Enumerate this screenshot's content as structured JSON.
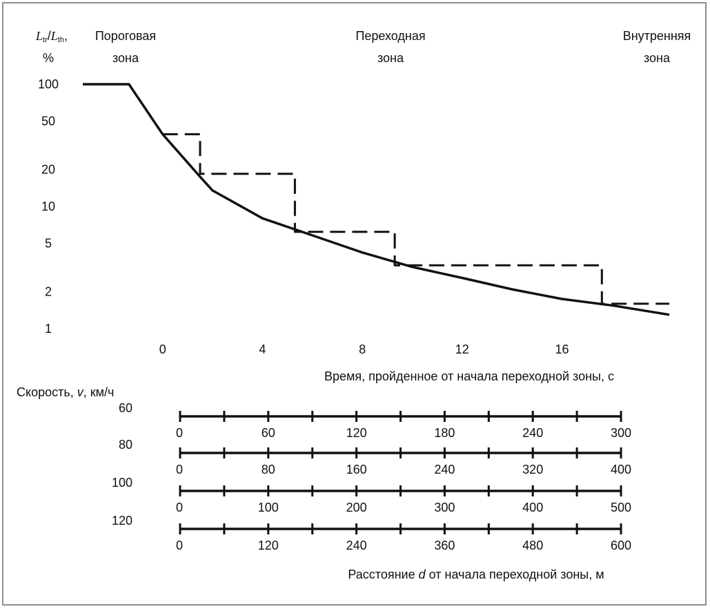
{
  "chart_data": {
    "type": "line",
    "ylabel_main": "L",
    "ylabel_main_sub": "tr",
    "ylabel_sep": "/",
    "ylabel_ref": "L",
    "ylabel_ref_sub": "th",
    "ylabel_tail": ",",
    "ylabel_unit": "%",
    "yscale": "log",
    "ylim": [
      1,
      100
    ],
    "yticks": [
      "100",
      "50",
      "20",
      "10",
      "5",
      "2",
      "1"
    ],
    "ytick_values": [
      100,
      50,
      20,
      10,
      5,
      2,
      1
    ],
    "xlabel": "Время, пройденное от начала переходной зоны, с",
    "xlim": [
      -3.2,
      20.3
    ],
    "xticks": [
      "0",
      "4",
      "8",
      "12",
      "16"
    ],
    "xtick_values": [
      0,
      4,
      8,
      12,
      16
    ],
    "zones": [
      {
        "line1": "Пороговая",
        "line2": "зона"
      },
      {
        "line1": "Переходная",
        "line2": "зона"
      },
      {
        "line1": "Внутренняя",
        "line2": "зона"
      }
    ],
    "series": [
      {
        "style": "solid",
        "x": [
          -3.2,
          -1.35,
          0,
          1.5,
          2.0,
          4.0,
          6.0,
          8.0,
          10.0,
          12.0,
          14.0,
          16.0,
          18.0,
          20.3
        ],
        "y": [
          100,
          100,
          39,
          17.5,
          13.5,
          8.0,
          5.8,
          4.2,
          3.2,
          2.6,
          2.1,
          1.75,
          1.55,
          1.3
        ]
      },
      {
        "style": "dashed",
        "x": [
          0,
          1.5,
          1.5,
          5.3,
          5.3,
          9.3,
          9.3,
          17.6,
          17.6,
          20.3
        ],
        "y": [
          39,
          39,
          18.5,
          18.5,
          6.2,
          6.2,
          3.3,
          3.3,
          1.6,
          1.6
        ]
      }
    ],
    "speed_scales": {
      "title_prefix": "Скорость, ",
      "title_var": "v",
      "title_suffix": ", км/ч",
      "xlabel_prefix": "Расстояние ",
      "xlabel_var": "d",
      "xlabel_suffix": " от начала переходной зоны, м",
      "rows": [
        {
          "speed": "60",
          "labels": [
            "0",
            "60",
            "120",
            "180",
            "240",
            "300"
          ]
        },
        {
          "speed": "80",
          "labels": [
            "0",
            "80",
            "160",
            "240",
            "320",
            "400"
          ]
        },
        {
          "speed": "100",
          "labels": [
            "0",
            "100",
            "200",
            "300",
            "400",
            "500"
          ]
        },
        {
          "speed": "120",
          "labels": [
            "0",
            "120",
            "240",
            "360",
            "480",
            "600"
          ]
        }
      ]
    }
  }
}
